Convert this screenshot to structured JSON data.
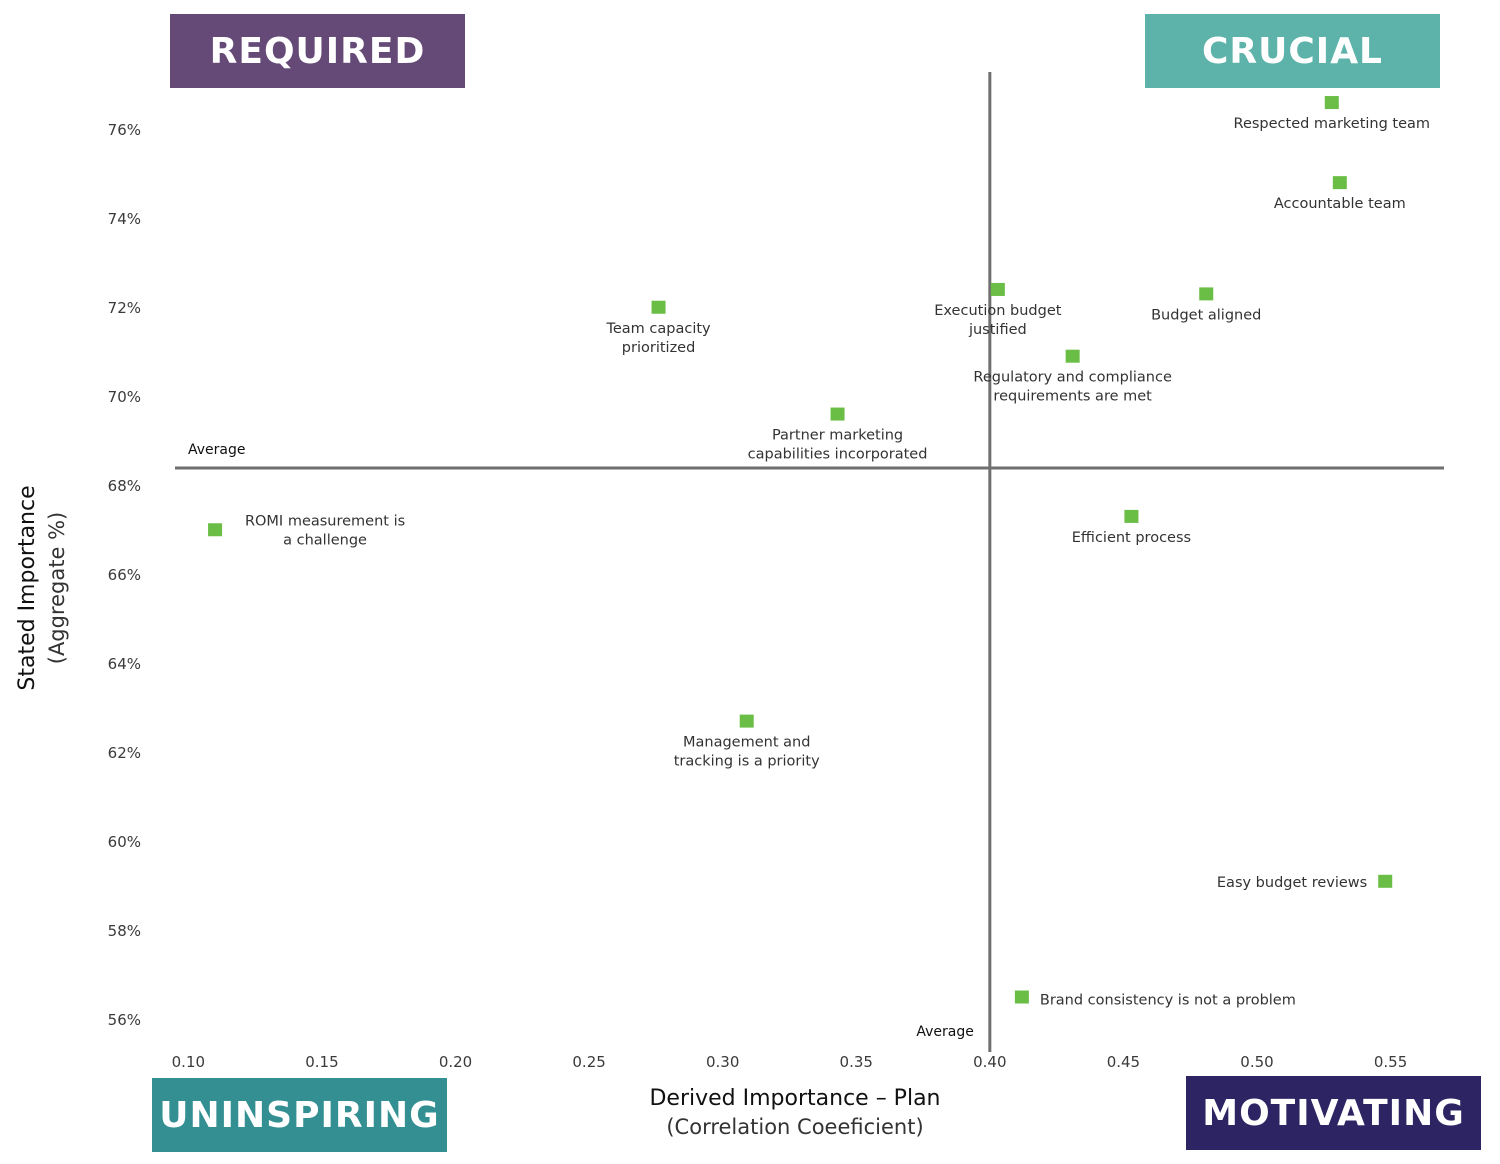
{
  "quadrants": {
    "required": {
      "label": "REQUIRED",
      "color": "#654a78"
    },
    "crucial": {
      "label": "CRUCIAL",
      "color": "#5db3aa"
    },
    "uninspiring": {
      "label": "UNINSPIRING",
      "color": "#338f92"
    },
    "motivating": {
      "label": "MOTIVATING",
      "color": "#2d2563"
    }
  },
  "colors": {
    "marker": "#6abd45",
    "average_line": "#6f6f6f"
  },
  "chart_data": {
    "type": "scatter",
    "xlabel": "Derived Importance – Plan",
    "xlabel_sub": "(Correlation Coeeficient)",
    "ylabel": "Stated Importance",
    "ylabel_sub": "(Aggregate %)",
    "xlim": [
      0.095,
      0.57
    ],
    "ylim": [
      55.5,
      77.5
    ],
    "x_ticks": [
      "0.10",
      "0.15",
      "0.20",
      "0.25",
      "0.30",
      "0.35",
      "0.40",
      "0.45",
      "0.50",
      "0.55"
    ],
    "y_ticks": [
      "56%",
      "58%",
      "60%",
      "62%",
      "64%",
      "66%",
      "68%",
      "70%",
      "72%",
      "74%",
      "76%"
    ],
    "average": {
      "x": 0.4,
      "y": 68.4,
      "x_label": "Average",
      "y_label": "Average"
    },
    "points": [
      {
        "label": [
          "Respected marketing team"
        ],
        "x": 0.528,
        "y": 76.6,
        "label_pos": "below"
      },
      {
        "label": [
          "Accountable team"
        ],
        "x": 0.531,
        "y": 74.8,
        "label_pos": "below"
      },
      {
        "label": [
          "Execution budget",
          "justified"
        ],
        "x": 0.403,
        "y": 72.4,
        "label_pos": "below"
      },
      {
        "label": [
          "Budget aligned"
        ],
        "x": 0.481,
        "y": 72.3,
        "label_pos": "below"
      },
      {
        "label": [
          "Team capacity",
          "prioritized"
        ],
        "x": 0.276,
        "y": 72.0,
        "label_pos": "below"
      },
      {
        "label": [
          "Regulatory and compliance",
          "requirements are met"
        ],
        "x": 0.431,
        "y": 70.9,
        "label_pos": "below"
      },
      {
        "label": [
          "Partner marketing",
          "capabilities incorporated"
        ],
        "x": 0.343,
        "y": 69.6,
        "label_pos": "below"
      },
      {
        "label": [
          "ROMI measurement is",
          "a challenge"
        ],
        "x": 0.11,
        "y": 67.0,
        "label_pos": "right"
      },
      {
        "label": [
          "Efficient process"
        ],
        "x": 0.453,
        "y": 67.3,
        "label_pos": "below"
      },
      {
        "label": [
          "Management and",
          "tracking is a priority"
        ],
        "x": 0.309,
        "y": 62.7,
        "label_pos": "below"
      },
      {
        "label": [
          "Easy budget reviews"
        ],
        "x": 0.548,
        "y": 59.1,
        "label_pos": "left"
      },
      {
        "label": [
          "Brand consistency is not a problem"
        ],
        "x": 0.412,
        "y": 56.5,
        "label_pos": "right"
      }
    ]
  }
}
